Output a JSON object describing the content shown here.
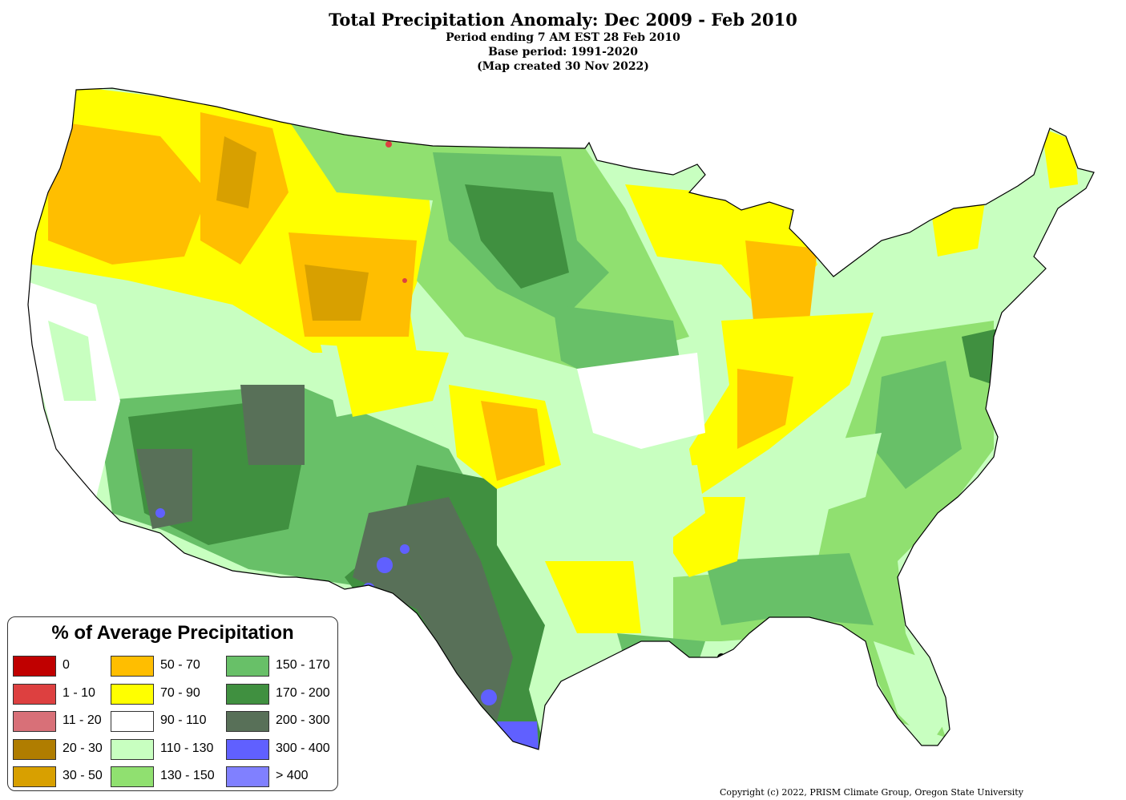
{
  "title": {
    "main": "Total Precipitation Anomaly: Dec 2009 - Feb 2010",
    "line1": "Period ending 7 AM EST 28 Feb 2010",
    "line2": "Base period: 1991-2020",
    "line3": "(Map created 30 Nov 2022)"
  },
  "legend": {
    "title": "% of Average Precipitation",
    "items": [
      {
        "label": "0",
        "color": "#c00000"
      },
      {
        "label": "1 - 10",
        "color": "#dd4040"
      },
      {
        "label": "11 - 20",
        "color": "#d87078"
      },
      {
        "label": "20 - 30",
        "color": "#b07d00"
      },
      {
        "label": "30 - 50",
        "color": "#d8a000"
      },
      {
        "label": "50 - 70",
        "color": "#ffbe00"
      },
      {
        "label": "70 - 90",
        "color": "#ffff00"
      },
      {
        "label": "90 - 110",
        "color": "#ffffff"
      },
      {
        "label": "110 - 130",
        "color": "#c8ffc0"
      },
      {
        "label": "130 - 150",
        "color": "#90e070"
      },
      {
        "label": "150 - 170",
        "color": "#68c068"
      },
      {
        "label": "170 - 200",
        "color": "#409040"
      },
      {
        "label": "200 - 300",
        "color": "#587058"
      },
      {
        "label": "300 - 400",
        "color": "#6060ff"
      },
      {
        "label": "> 400",
        "color": "#8080ff"
      }
    ]
  },
  "copyright": "Copyright (c) 2022, PRISM Climate Group, Oregon State University"
}
